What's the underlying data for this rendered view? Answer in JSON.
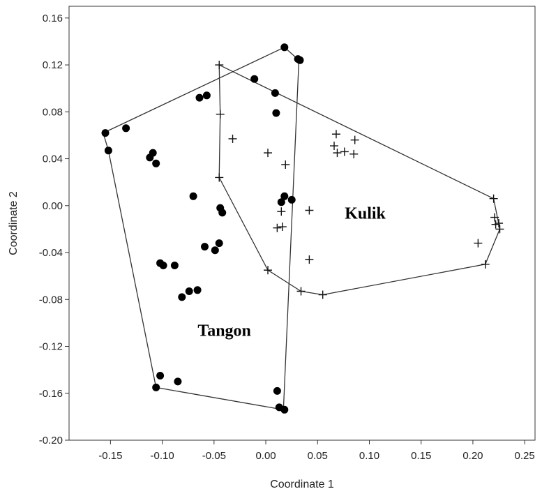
{
  "chart_data": {
    "type": "scatter",
    "xlabel": "Coordinate 1",
    "ylabel": "Coordinate 2",
    "xlim": [
      -0.19,
      0.26
    ],
    "ylim": [
      -0.2,
      0.17
    ],
    "xticks": [
      "-0.15",
      "-0.10",
      "-0.05",
      "0.00",
      "0.05",
      "0.10",
      "0.15",
      "0.20",
      "0.25"
    ],
    "yticks": [
      "0.16",
      "0.12",
      "0.08",
      "0.04",
      "0.00",
      "-0.04",
      "-0.08",
      "-0.12",
      "-0.16",
      "-0.20"
    ],
    "grid": false,
    "annotations": [
      {
        "text": "Tangon",
        "x": -0.04,
        "y": -0.111
      },
      {
        "text": "Kulik",
        "x": 0.096,
        "y": -0.011
      }
    ],
    "series": [
      {
        "name": "Tangon",
        "marker": "dot",
        "points": [
          [
            0.018,
            0.135
          ],
          [
            0.031,
            0.125
          ],
          [
            0.033,
            0.124
          ],
          [
            -0.011,
            0.108
          ],
          [
            0.009,
            0.096
          ],
          [
            0.01,
            0.079
          ],
          [
            -0.057,
            0.094
          ],
          [
            -0.064,
            0.092
          ],
          [
            -0.155,
            0.062
          ],
          [
            -0.135,
            0.066
          ],
          [
            -0.152,
            0.047
          ],
          [
            -0.109,
            0.045
          ],
          [
            -0.112,
            0.041
          ],
          [
            -0.106,
            0.036
          ],
          [
            -0.07,
            0.008
          ],
          [
            0.018,
            0.008
          ],
          [
            0.025,
            0.005
          ],
          [
            0.015,
            0.003
          ],
          [
            -0.044,
            -0.002
          ],
          [
            -0.042,
            -0.006
          ],
          [
            -0.045,
            -0.032
          ],
          [
            -0.059,
            -0.035
          ],
          [
            -0.049,
            -0.038
          ],
          [
            -0.102,
            -0.049
          ],
          [
            -0.099,
            -0.051
          ],
          [
            -0.088,
            -0.051
          ],
          [
            -0.074,
            -0.073
          ],
          [
            -0.066,
            -0.072
          ],
          [
            -0.081,
            -0.078
          ],
          [
            -0.102,
            -0.145
          ],
          [
            -0.106,
            -0.155
          ],
          [
            -0.085,
            -0.15
          ],
          [
            0.011,
            -0.158
          ],
          [
            0.013,
            -0.172
          ],
          [
            0.018,
            -0.174
          ]
        ]
      },
      {
        "name": "Kulik",
        "marker": "plus",
        "points": [
          [
            -0.045,
            0.12
          ],
          [
            -0.044,
            0.078
          ],
          [
            -0.032,
            0.057
          ],
          [
            0.002,
            0.045
          ],
          [
            0.019,
            0.035
          ],
          [
            -0.045,
            0.024
          ],
          [
            0.068,
            0.061
          ],
          [
            0.086,
            0.056
          ],
          [
            0.066,
            0.051
          ],
          [
            0.069,
            0.045
          ],
          [
            0.076,
            0.046
          ],
          [
            0.085,
            0.044
          ],
          [
            0.015,
            -0.005
          ],
          [
            0.042,
            -0.004
          ],
          [
            0.016,
            -0.018
          ],
          [
            0.011,
            -0.019
          ],
          [
            0.042,
            -0.046
          ],
          [
            0.002,
            -0.055
          ],
          [
            0.034,
            -0.073
          ],
          [
            0.055,
            -0.076
          ],
          [
            0.22,
            0.006
          ],
          [
            0.221,
            -0.01
          ],
          [
            0.222,
            -0.016
          ],
          [
            0.226,
            -0.02
          ],
          [
            0.225,
            -0.015
          ],
          [
            0.205,
            -0.032
          ],
          [
            0.212,
            -0.05
          ]
        ]
      }
    ],
    "hulls": [
      {
        "name": "Tangon",
        "points": [
          [
            -0.157,
            0.062
          ],
          [
            0.018,
            0.135
          ],
          [
            0.032,
            0.124
          ],
          [
            0.017,
            -0.174
          ],
          [
            -0.106,
            -0.155
          ],
          [
            -0.152,
            0.047
          ]
        ]
      },
      {
        "name": "Kulik",
        "points": [
          [
            -0.045,
            0.12
          ],
          [
            0.22,
            0.006
          ],
          [
            0.226,
            -0.02
          ],
          [
            0.212,
            -0.05
          ],
          [
            0.055,
            -0.076
          ],
          [
            0.034,
            -0.073
          ],
          [
            0.002,
            -0.055
          ],
          [
            -0.045,
            0.024
          ],
          [
            -0.044,
            0.078
          ]
        ]
      }
    ]
  }
}
